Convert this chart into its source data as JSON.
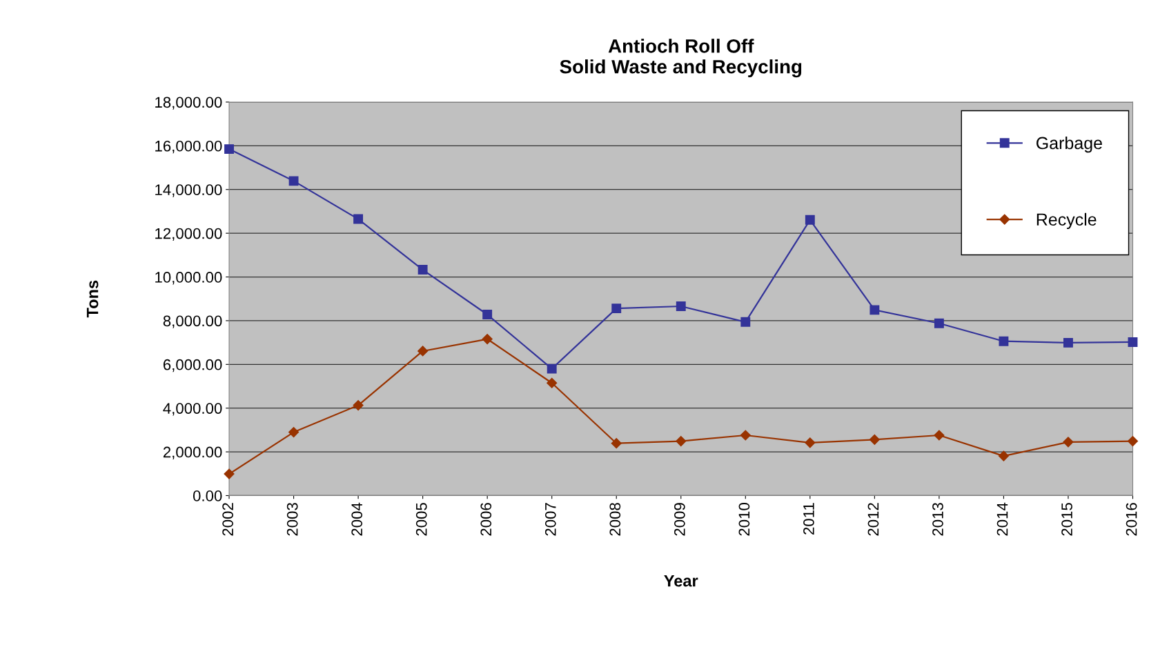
{
  "chart_data": {
    "type": "line",
    "title": "Antioch Roll Off\nSolid Waste and Recycling",
    "xlabel": "Year",
    "ylabel": "Tons",
    "categories": [
      "2002",
      "2003",
      "2004",
      "2005",
      "2006",
      "2007",
      "2008",
      "2009",
      "2010",
      "2011",
      "2012",
      "2013",
      "2014",
      "2015",
      "2016"
    ],
    "series": [
      {
        "name": "Garbage",
        "color": "#333399",
        "marker": "square",
        "values": [
          15850,
          14390,
          12650,
          10330,
          8280,
          5800,
          8560,
          8660,
          7940,
          12610,
          8490,
          7880,
          7060,
          6990,
          7020
        ]
      },
      {
        "name": "Recycle",
        "color": "#993300",
        "marker": "diamond",
        "values": [
          990,
          2900,
          4130,
          6610,
          7160,
          5150,
          2390,
          2490,
          2760,
          2420,
          2560,
          2760,
          1810,
          2450,
          2490
        ]
      }
    ],
    "ylim": [
      0,
      18000
    ],
    "yticks": [
      {
        "value": 0,
        "label": "0.00"
      },
      {
        "value": 2000,
        "label": "2,000.00"
      },
      {
        "value": 4000,
        "label": "4,000.00"
      },
      {
        "value": 6000,
        "label": "6,000.00"
      },
      {
        "value": 8000,
        "label": "8,000.00"
      },
      {
        "value": 10000,
        "label": "10,000.00"
      },
      {
        "value": 12000,
        "label": "12,000.00"
      },
      {
        "value": 14000,
        "label": "14,000.00"
      },
      {
        "value": 16000,
        "label": "16,000.00"
      },
      {
        "value": 18000,
        "label": "18,000.00"
      }
    ],
    "grid": "y",
    "legend": "top right",
    "line_style": "solid"
  }
}
